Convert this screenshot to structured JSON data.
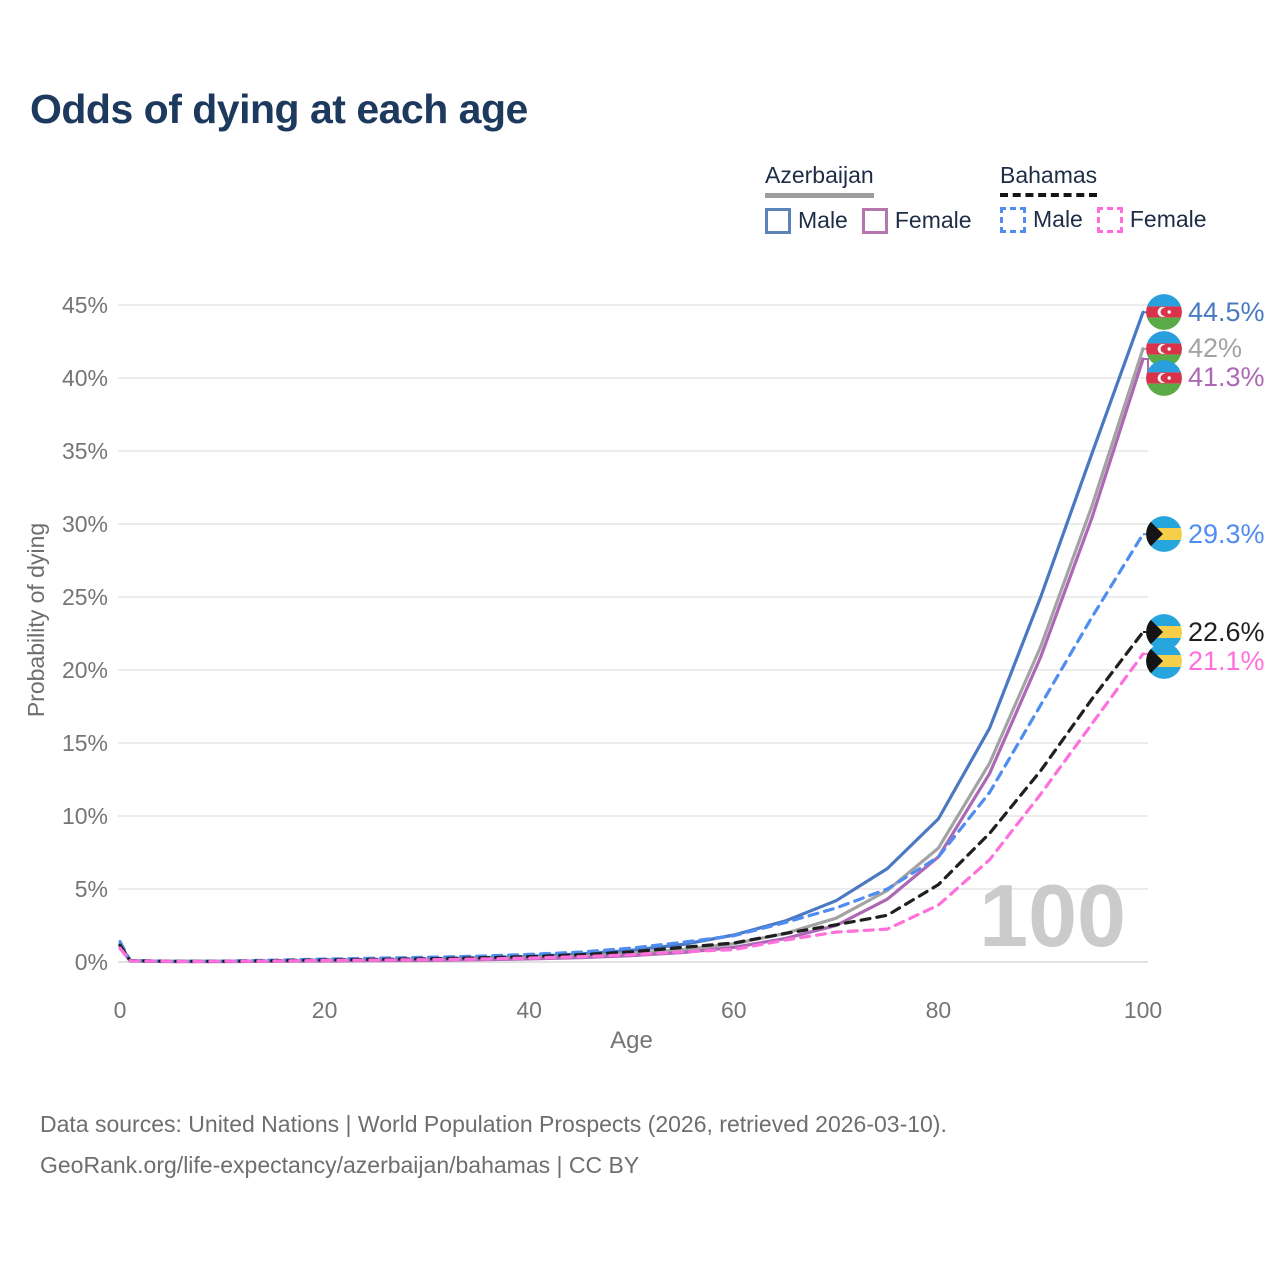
{
  "header": {
    "title": "Odds of dying at each age"
  },
  "legend": {
    "groups": [
      {
        "country": "Azerbaijan",
        "style": "solid",
        "underline_color": "#9e9e9e",
        "items": [
          {
            "label": "Male",
            "color": "#5b83b8"
          },
          {
            "label": "Female",
            "color": "#b476ad"
          }
        ]
      },
      {
        "country": "Bahamas",
        "style": "dashed",
        "underline_color": "#151515",
        "items": [
          {
            "label": "Male",
            "color": "#4f8df0"
          },
          {
            "label": "Female",
            "color": "#ff6ed8"
          }
        ]
      }
    ]
  },
  "watermark": "100",
  "footer": {
    "line1": "Data sources: United Nations | World Population Prospects (2026, retrieved 2026-03-10).",
    "line2": "GeoRank.org/life-expectancy/azerbaijan/bahamas | CC BY"
  },
  "chart_data": {
    "type": "line",
    "title": "Odds of dying at each age",
    "xlabel": "Age",
    "ylabel": "Probability of dying",
    "xlim": [
      0,
      100
    ],
    "ylim": [
      0,
      45
    ],
    "x_ticks": [
      0,
      20,
      40,
      60,
      80,
      100
    ],
    "y_ticks_percent": [
      0,
      5,
      10,
      15,
      20,
      25,
      30,
      35,
      40,
      45
    ],
    "y_tick_suffix": "%",
    "grid": "horizontal",
    "legend_position": "top-right",
    "x": [
      0,
      1,
      5,
      10,
      15,
      20,
      25,
      30,
      35,
      40,
      45,
      50,
      55,
      60,
      65,
      70,
      75,
      80,
      85,
      90,
      95,
      100
    ],
    "series": [
      {
        "name": "Azerbaijan Male",
        "flag": "azerbaijan-flag-icon",
        "color": "#4a79c2",
        "dash": "solid",
        "end_label": "44.5%",
        "values": [
          1.2,
          0.09,
          0.04,
          0.04,
          0.07,
          0.12,
          0.16,
          0.2,
          0.28,
          0.38,
          0.55,
          0.8,
          1.2,
          1.85,
          2.8,
          4.2,
          6.4,
          9.8,
          16.0,
          25.0,
          34.8,
          44.5
        ]
      },
      {
        "name": "Azerbaijan Total",
        "flag": "azerbaijan-flag-icon",
        "color": "#a3a3a3",
        "dash": "solid",
        "end_label": "42%",
        "values": [
          1.05,
          0.08,
          0.04,
          0.04,
          0.06,
          0.09,
          0.12,
          0.15,
          0.2,
          0.28,
          0.4,
          0.58,
          0.85,
          1.25,
          1.95,
          3.0,
          4.9,
          7.8,
          13.6,
          21.6,
          31.2,
          42.0
        ]
      },
      {
        "name": "Azerbaijan Female",
        "flag": "azerbaijan-flag-icon",
        "color": "#ad68b5",
        "dash": "solid",
        "end_label": "41.3%",
        "values": [
          0.95,
          0.07,
          0.03,
          0.03,
          0.05,
          0.07,
          0.09,
          0.11,
          0.15,
          0.21,
          0.3,
          0.44,
          0.65,
          1.0,
          1.6,
          2.5,
          4.3,
          7.2,
          12.9,
          20.9,
          30.4,
          41.3
        ]
      },
      {
        "name": "Bahamas Male",
        "flag": "bahamas-flag-icon",
        "color": "#4f8df0",
        "dash": "dashed",
        "end_label": "29.3%",
        "values": [
          1.4,
          0.1,
          0.05,
          0.06,
          0.12,
          0.2,
          0.26,
          0.32,
          0.4,
          0.52,
          0.68,
          0.95,
          1.35,
          1.8,
          2.7,
          3.7,
          5.0,
          7.2,
          11.6,
          17.6,
          23.6,
          29.3
        ]
      },
      {
        "name": "Bahamas Total",
        "flag": "bahamas-flag-icon",
        "color": "#1f1f1f",
        "dash": "dashed",
        "end_label": "22.6%",
        "values": [
          1.15,
          0.09,
          0.045,
          0.05,
          0.09,
          0.14,
          0.18,
          0.22,
          0.28,
          0.37,
          0.5,
          0.7,
          1.0,
          1.3,
          1.95,
          2.55,
          3.2,
          5.3,
          8.8,
          13.1,
          18.0,
          22.6
        ]
      },
      {
        "name": "Bahamas Female",
        "flag": "bahamas-flag-icon",
        "color": "#ff70dc",
        "dash": "dashed",
        "end_label": "21.1%",
        "values": [
          0.95,
          0.08,
          0.04,
          0.045,
          0.07,
          0.1,
          0.13,
          0.16,
          0.2,
          0.27,
          0.36,
          0.5,
          0.7,
          0.85,
          1.5,
          2.05,
          2.25,
          3.9,
          7.0,
          11.5,
          16.3,
          21.1
        ]
      }
    ],
    "colors": {
      "grid": "#ececec",
      "axis_text": "#757575",
      "watermark": "#cbcbcb",
      "azerbaijan_flag": {
        "blue": "#29a0dd",
        "red": "#d8334a",
        "green": "#5aab47"
      },
      "bahamas_flag": {
        "aqua": "#26a6dc",
        "gold": "#f6cf4a",
        "black": "#141414"
      }
    }
  }
}
